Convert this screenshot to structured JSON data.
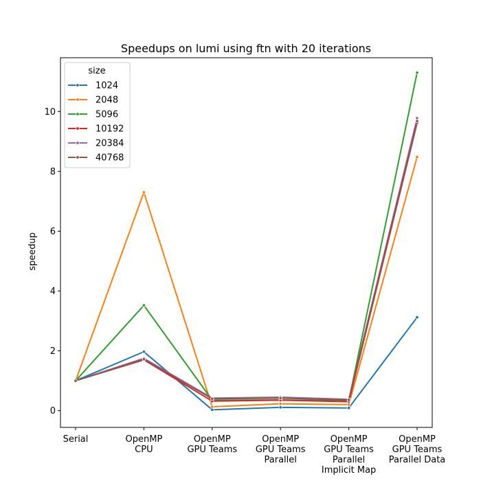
{
  "chart_data": {
    "type": "line",
    "title": "Speedups on lumi using ftn with 20 iterations",
    "xlabel": "",
    "ylabel": "speedup",
    "categories": [
      [
        "Serial"
      ],
      [
        "OpenMP",
        "CPU"
      ],
      [
        "OpenMP",
        "GPU Teams"
      ],
      [
        "OpenMP",
        "GPU Teams",
        "Parallel"
      ],
      [
        "OpenMP",
        "GPU Teams",
        "Parallel",
        "Implicit Map"
      ],
      [
        "OpenMP",
        "GPU Teams",
        "Parallel Data"
      ]
    ],
    "ylim": [
      -0.56,
      11.8
    ],
    "yticks": [
      "0",
      "2",
      "4",
      "6",
      "8",
      "10"
    ],
    "grid": false,
    "legend": {
      "title": "size",
      "placement": "top-left"
    },
    "series": [
      {
        "name": "1024",
        "color": "#1f77b4",
        "values": [
          1.0,
          1.97,
          0.03,
          0.11,
          0.09,
          3.12
        ]
      },
      {
        "name": "2048",
        "color": "#ff7f0e",
        "values": [
          1.0,
          7.3,
          0.13,
          0.23,
          0.2,
          8.48
        ]
      },
      {
        "name": "5096",
        "color": "#2ca02c",
        "values": [
          1.0,
          3.52,
          0.35,
          0.36,
          0.33,
          11.3
        ]
      },
      {
        "name": "10192",
        "color": "#d62728",
        "values": [
          1.0,
          1.7,
          0.32,
          0.35,
          0.3,
          9.62
        ]
      },
      {
        "name": "20384",
        "color": "#9467bd",
        "values": [
          1.0,
          1.75,
          0.42,
          0.45,
          0.38,
          9.78
        ]
      },
      {
        "name": "40768",
        "color": "#8c564b",
        "values": [
          1.0,
          1.72,
          0.4,
          0.42,
          0.36,
          9.68
        ]
      }
    ]
  }
}
